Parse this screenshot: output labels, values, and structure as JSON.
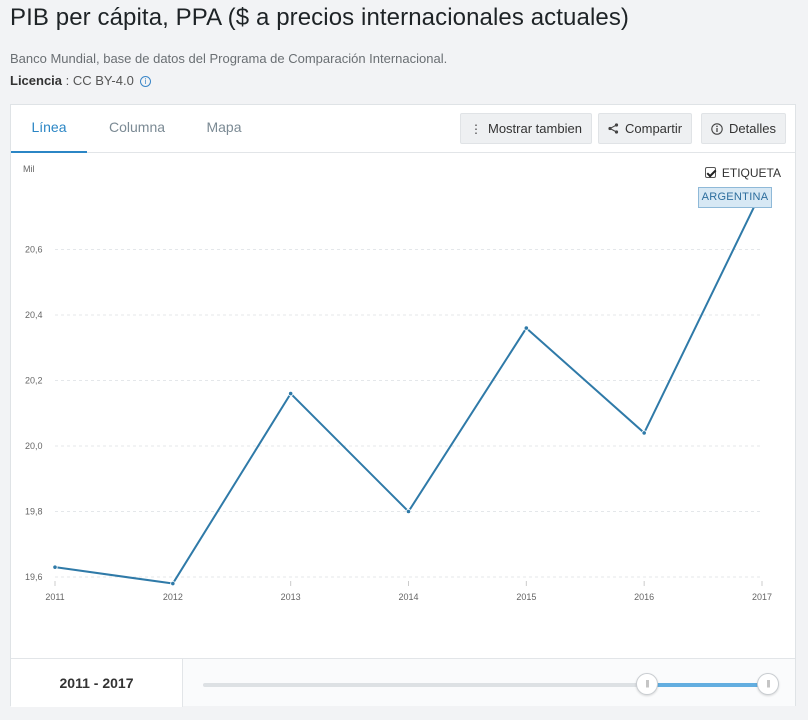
{
  "header": {
    "title": "PIB per cápita, PPA ($ a precios internacionales actuales)",
    "source": "Banco Mundial, base de datos del Programa de Comparación Internacional.",
    "license_label": "Licencia",
    "license_value": " : CC BY-4.0"
  },
  "tabs": [
    {
      "label": "Línea",
      "active": true
    },
    {
      "label": "Columna",
      "active": false
    },
    {
      "label": "Mapa",
      "active": false
    }
  ],
  "toolbar": {
    "show_also_label": "Mostrar tambien",
    "share_label": "Compartir",
    "details_label": "Detalles"
  },
  "legend": {
    "checkbox_label": "ETIQUETA",
    "checked": true
  },
  "footer": {
    "range_label": "2011 - 2017",
    "range_fraction_start": 0.786,
    "range_fraction_end": 1.0
  },
  "colors": {
    "accent": "#2b86c5",
    "line": "#2f7aa8",
    "slider_fill": "#63aee0"
  },
  "chart_data": {
    "type": "line",
    "title": "",
    "xlabel": "",
    "ylabel": "Mil",
    "x": [
      "2011",
      "2012",
      "2013",
      "2014",
      "2015",
      "2016",
      "2017"
    ],
    "series": [
      {
        "name": "ARGENTINA",
        "values": [
          19.63,
          19.58,
          20.16,
          19.8,
          20.36,
          20.04,
          20.78
        ]
      }
    ],
    "y_ticks": [
      19.6,
      19.8,
      20.0,
      20.2,
      20.4,
      20.6
    ],
    "y_tick_labels": [
      "19,6",
      "19,8",
      "20,0",
      "20,2",
      "20,4",
      "20,6"
    ],
    "ylim": [
      19.6,
      20.8
    ],
    "grid": true
  }
}
